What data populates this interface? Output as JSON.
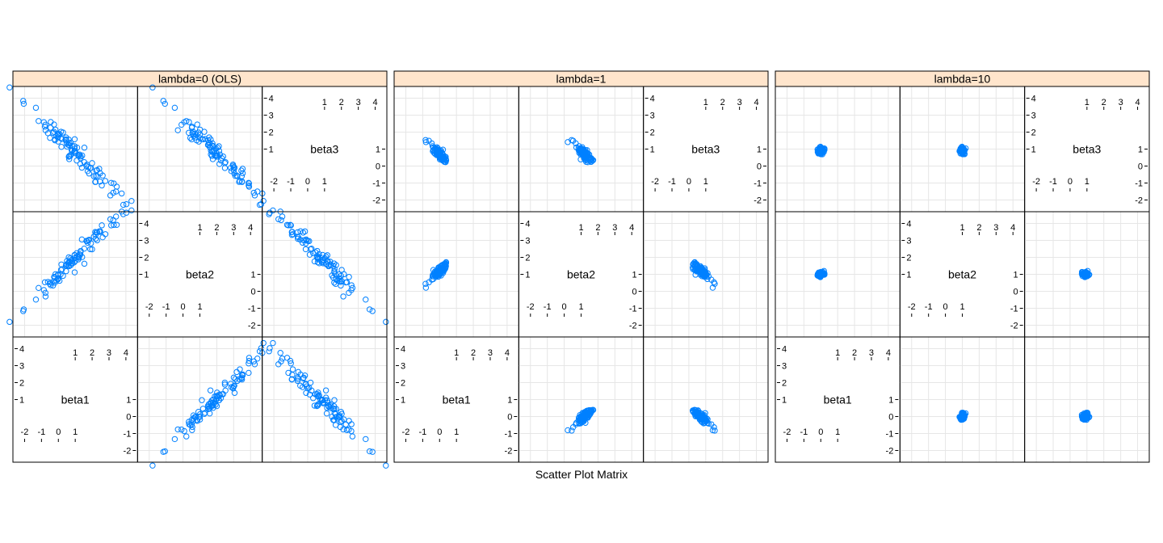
{
  "chart_data": {
    "type": "scatter",
    "title": "",
    "xlabel": "Scatter Plot Matrix",
    "variables": [
      "beta1",
      "beta2",
      "beta3"
    ],
    "axis_range": [
      -2.5,
      4.5
    ],
    "diag_ticks_low": [
      "-2",
      "-1",
      "0",
      "1"
    ],
    "diag_ticks_high": [
      "1",
      "2",
      "3",
      "4"
    ],
    "off_ticks": [
      "-2",
      "-1",
      "0",
      "1"
    ],
    "grid": true,
    "point_color": "#0080ff",
    "strip_color": "#ffe5cc",
    "panels": [
      {
        "label": "lambda=0 (OLS)",
        "centers": [
          0.9,
          1.85,
          0.9
        ],
        "sd": [
          1.4,
          1.4,
          1.3
        ],
        "corr": {
          "b1_b2": 0.98,
          "b1_b3": -0.98,
          "b2_b3": -0.98
        }
      },
      {
        "label": "lambda=1",
        "centers": [
          0.0,
          1.2,
          0.7
        ],
        "sd": [
          0.25,
          0.25,
          0.25
        ],
        "corr": {
          "b1_b2": 0.85,
          "b1_b3": -0.85,
          "b2_b3": -0.85
        }
      },
      {
        "label": "lambda=10",
        "centers": [
          0.0,
          1.0,
          0.9
        ],
        "sd": [
          0.1,
          0.07,
          0.09
        ],
        "corr": {
          "b1_b2": 0.2,
          "b1_b3": -0.2,
          "b2_b3": -0.2
        }
      }
    ]
  }
}
